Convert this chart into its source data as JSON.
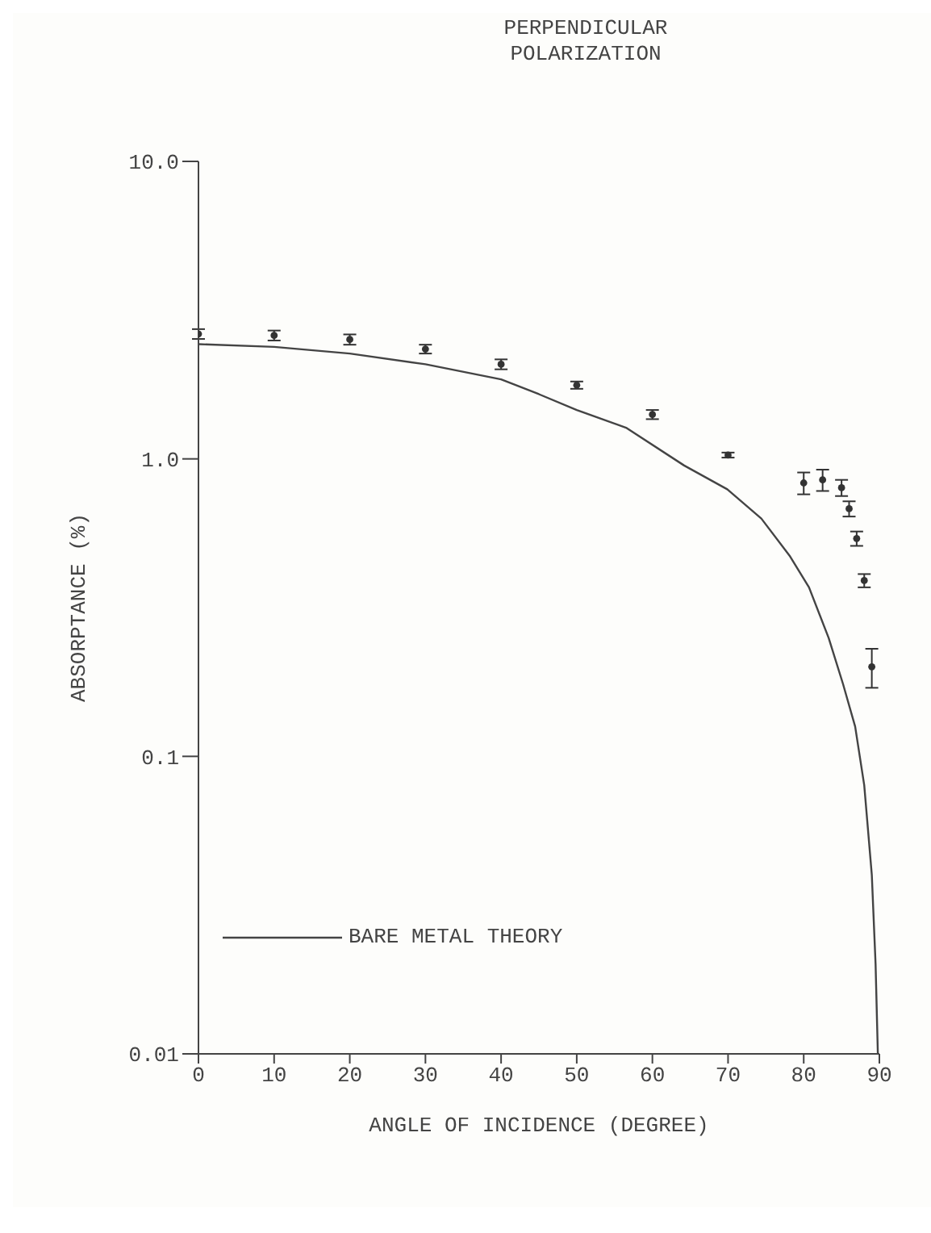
{
  "chart_data": {
    "type": "scatter",
    "title": "PERPENDICULAR POLARIZATION",
    "xlabel": "ANGLE OF INCIDENCE (DEGREE)",
    "ylabel": "ABSORPTANCE (%)",
    "log": "y",
    "xlim": [
      0,
      90
    ],
    "xticks": [
      0,
      10,
      20,
      30,
      40,
      50,
      60,
      70,
      80,
      90
    ],
    "ylim": [
      0.01,
      10
    ],
    "yticks": [
      0.01,
      0.1,
      {
        "value": 1,
        "label": "1.0"
      },
      {
        "value": 10,
        "label": "10.0"
      }
    ],
    "legend": "bottom left",
    "series": [
      {
        "color": "#333333",
        "marker": "circle",
        "x": [
          0,
          10,
          20,
          30,
          40,
          50,
          60,
          70,
          80,
          82.5,
          85,
          86,
          87,
          88,
          89
        ],
        "values": [
          2.63,
          2.6,
          2.52,
          2.34,
          2.08,
          1.77,
          1.41,
          1.03,
          0.83,
          0.85,
          0.8,
          0.68,
          0.54,
          0.39,
          0.2
        ],
        "errors": [
          0.1,
          0.1,
          0.1,
          0.08,
          0.08,
          0.05,
          0.05,
          0.02,
          0.07,
          0.07,
          0.05,
          0.04,
          0.03,
          0.02,
          [
            0.17,
            0.23
          ]
        ]
      },
      {
        "type": "line",
        "name": "BARE METAL THEORY",
        "color": "#444444",
        "marker": "none",
        "line_style": "solid",
        "x": [
          0,
          10,
          20,
          30,
          40,
          45,
          50,
          56.6,
          64.2,
          69.9,
          74.4,
          78.2,
          80.7,
          83.3,
          85.2,
          86.8,
          88,
          89,
          89.5,
          89.8
        ],
        "values": [
          2.43,
          2.38,
          2.26,
          2.08,
          1.85,
          1.65,
          1.46,
          1.27,
          0.95,
          0.79,
          0.63,
          0.47,
          0.37,
          0.25,
          0.175,
          0.126,
          0.08,
          0.04,
          0.02,
          0.01
        ]
      }
    ]
  }
}
